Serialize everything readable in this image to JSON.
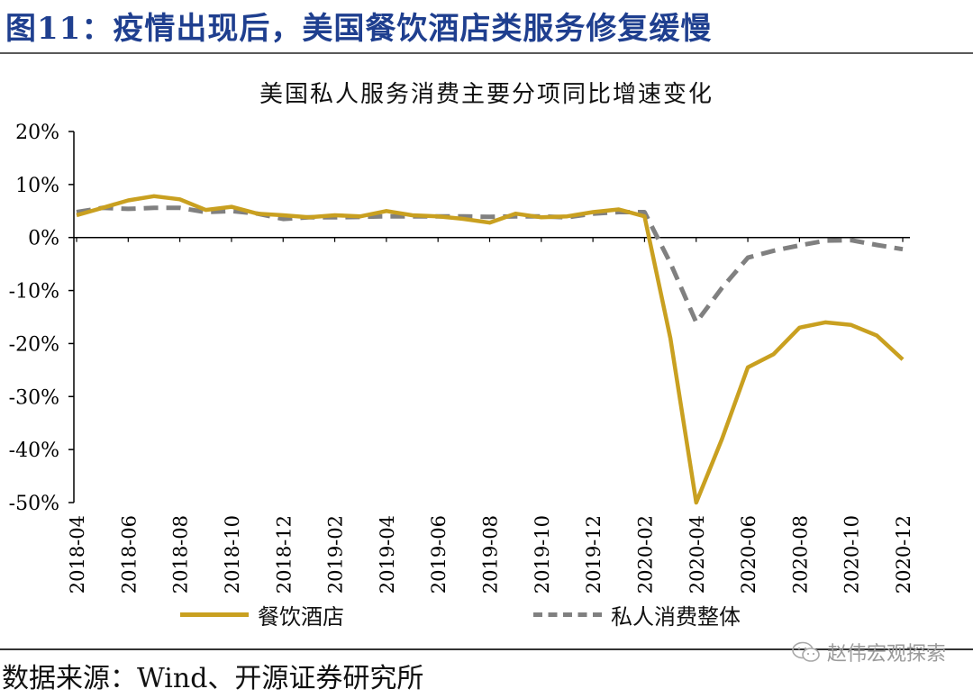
{
  "figure": {
    "title": "图11：疫情出现后，美国餐饮酒店类服务修复缓慢",
    "source": "数据来源：Wind、开源证券研究所",
    "watermark": "赵伟宏观探索"
  },
  "chart_data": {
    "type": "line",
    "title": "美国私人服务消费主要分项同比增速变化",
    "xlabel": "",
    "ylabel": "",
    "ylim": [
      -50,
      20
    ],
    "yticks": [
      20,
      10,
      0,
      -10,
      -20,
      -30,
      -40,
      -50
    ],
    "ytick_labels": [
      "20%",
      "10%",
      "0%",
      "-10%",
      "-20%",
      "-30%",
      "-40%",
      "-50%"
    ],
    "grid": false,
    "legend_position": "bottom",
    "x": [
      "2018-04",
      "2018-05",
      "2018-06",
      "2018-07",
      "2018-08",
      "2018-09",
      "2018-10",
      "2018-11",
      "2018-12",
      "2019-01",
      "2019-02",
      "2019-03",
      "2019-04",
      "2019-05",
      "2019-06",
      "2019-07",
      "2019-08",
      "2019-09",
      "2019-10",
      "2019-11",
      "2019-12",
      "2020-01",
      "2020-02",
      "2020-03",
      "2020-04",
      "2020-05",
      "2020-06",
      "2020-07",
      "2020-08",
      "2020-09",
      "2020-10",
      "2020-11",
      "2020-12"
    ],
    "xtick_labels": [
      "2018-04",
      "2018-06",
      "2018-08",
      "2018-10",
      "2018-12",
      "2019-02",
      "2019-04",
      "2019-06",
      "2019-08",
      "2019-10",
      "2019-12",
      "2020-02",
      "2020-04",
      "2020-06",
      "2020-08",
      "2020-10",
      "2020-12"
    ],
    "series": [
      {
        "name": "餐饮酒店",
        "color": "#c9a020",
        "style": "solid",
        "values": [
          4.2,
          5.6,
          7.0,
          7.8,
          7.2,
          5.2,
          5.8,
          4.5,
          4.2,
          3.8,
          4.2,
          4.0,
          5.0,
          4.2,
          4.0,
          3.5,
          2.8,
          4.5,
          3.8,
          4.0,
          4.8,
          5.3,
          4.0,
          -19.0,
          -50.0,
          -38.0,
          -24.5,
          -22.0,
          -17.0,
          -16.0,
          -16.5,
          -18.5,
          -23.0
        ]
      },
      {
        "name": "私人消费整体",
        "color": "#808080",
        "style": "dashed",
        "values": [
          4.8,
          5.6,
          5.4,
          5.6,
          5.6,
          4.8,
          5.0,
          4.5,
          3.5,
          3.8,
          3.8,
          3.9,
          4.0,
          4.0,
          4.0,
          4.0,
          3.9,
          4.0,
          4.0,
          3.8,
          4.5,
          4.8,
          4.8,
          -4.8,
          -16.0,
          -9.5,
          -3.8,
          -2.5,
          -1.5,
          -0.6,
          -0.5,
          -1.4,
          -2.2
        ]
      }
    ]
  }
}
